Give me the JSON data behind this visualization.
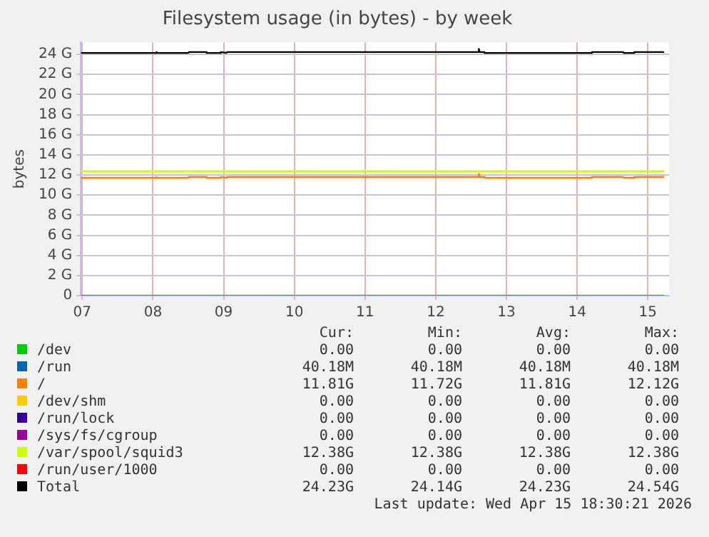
{
  "chart_data": {
    "type": "line",
    "title": "Filesystem usage (in bytes) - by week",
    "ylabel": "bytes",
    "xlim": [
      6.98,
      15.3
    ],
    "ylim": [
      0,
      25.2
    ],
    "xticks": [
      {
        "value": 7,
        "label": "07"
      },
      {
        "value": 8,
        "label": "08"
      },
      {
        "value": 9,
        "label": "09"
      },
      10,
      11,
      12,
      13,
      14,
      15
    ],
    "yticks": [
      0,
      {
        "value": 2,
        "label": "2 G"
      },
      {
        "value": 4,
        "label": "4 G"
      },
      {
        "value": 6,
        "label": "6 G"
      },
      {
        "value": 8,
        "label": "8 G"
      },
      {
        "value": 10,
        "label": "10 G"
      },
      {
        "value": 12,
        "label": "12 G"
      },
      {
        "value": 14,
        "label": "14 G"
      },
      {
        "value": 16,
        "label": "16 G"
      },
      {
        "value": 18,
        "label": "18 G"
      },
      {
        "value": 20,
        "label": "20 G"
      },
      {
        "value": 22,
        "label": "22 G"
      },
      {
        "value": 24,
        "label": "24 G"
      }
    ],
    "grid": true,
    "legend": "bottom",
    "series": [
      {
        "name": "/dev",
        "color": "#00cc00",
        "x": [
          6.98,
          15.23
        ],
        "values": [
          0,
          0
        ]
      },
      {
        "name": "/run",
        "color": "#0066b3"
      },
      {
        "name": "/",
        "color": "#ff8000",
        "x": [
          6.98,
          8.04,
          8.05,
          8.06,
          8.5,
          8.51,
          8.75,
          8.76,
          8.95,
          8.96,
          9.04,
          9.05,
          12.6,
          12.61,
          12.62,
          12.68,
          12.69,
          14.2,
          14.21,
          14.65,
          14.66,
          14.8,
          14.81,
          15.23
        ],
        "values": [
          11.72,
          11.72,
          11.81,
          11.72,
          11.72,
          11.81,
          11.81,
          11.72,
          11.72,
          11.81,
          11.72,
          11.81,
          11.81,
          12.12,
          11.81,
          11.81,
          11.72,
          11.72,
          11.81,
          11.81,
          11.72,
          11.72,
          11.81,
          11.81
        ]
      },
      {
        "name": "/dev/shm",
        "color": "#ffcc00"
      },
      {
        "name": "/run/lock",
        "color": "#330099"
      },
      {
        "name": "/sys/fs/cgroup",
        "color": "#990099"
      },
      {
        "name": "/var/spool/squid3",
        "color": "#ccff00",
        "x": [
          6.98,
          15.23
        ],
        "values": [
          12.38,
          12.38
        ]
      },
      {
        "name": "/run/user/1000",
        "color": "#ff0000"
      },
      {
        "name": "Total",
        "color": "#000000",
        "x": [
          6.98,
          8.04,
          8.05,
          8.06,
          8.5,
          8.51,
          8.75,
          8.76,
          8.95,
          8.96,
          9.04,
          9.05,
          12.6,
          12.61,
          12.62,
          12.68,
          12.69,
          14.2,
          14.21,
          14.65,
          14.66,
          14.8,
          14.81,
          15.23
        ],
        "values": [
          24.14,
          24.14,
          24.23,
          24.14,
          24.14,
          24.23,
          24.23,
          24.14,
          24.14,
          24.23,
          24.14,
          24.23,
          24.23,
          24.54,
          24.23,
          24.23,
          24.14,
          24.14,
          24.23,
          24.23,
          24.14,
          24.14,
          24.23,
          24.23
        ]
      }
    ],
    "annotations": [
      "Cur:",
      "Min:",
      "Avg:",
      "Max:",
      "0.00",
      "0.00",
      "0.00",
      "0.00",
      "40.18M",
      "40.18M",
      "40.18M",
      "40.18M",
      "11.81G",
      "11.72G",
      "11.81G",
      "12.12G",
      "0.00",
      "0.00",
      "0.00",
      "0.00",
      "0.00",
      "0.00",
      "0.00",
      "0.00",
      "0.00",
      "0.00",
      "0.00",
      "0.00",
      "12.38G",
      "12.38G",
      "12.38G",
      "12.38G",
      "0.00",
      "0.00",
      "0.00",
      "0.00",
      "24.23G",
      "24.14G",
      "24.23G",
      "24.54G",
      "Last update: Wed Apr 15 18:30:21 2026"
    ]
  }
}
